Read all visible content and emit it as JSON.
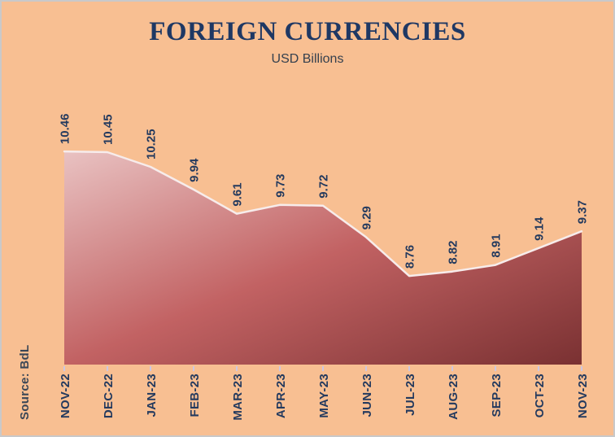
{
  "header": {
    "title": "FOREIGN CURRENCIES",
    "subtitle": "USD Billions"
  },
  "source": {
    "label": "Source: BdL"
  },
  "chart_data": {
    "type": "area",
    "title": "FOREIGN CURRENCIES",
    "subtitle": "USD Billions",
    "source": "Source: BdL",
    "categories": [
      "NOV-22",
      "DEC-22",
      "JAN-23",
      "FEB-23",
      "MAR-23",
      "APR-23",
      "MAY-23",
      "JUN-23",
      "JUL-23",
      "AUG-23",
      "SEP-23",
      "OCT-23",
      "NOV-23"
    ],
    "values": [
      10.46,
      10.45,
      10.25,
      9.94,
      9.61,
      9.73,
      9.72,
      9.29,
      8.76,
      8.82,
      8.91,
      9.14,
      9.37
    ],
    "data_labels": [
      "10.46",
      "10.45",
      "10.25",
      "9.94",
      "9.61",
      "9.73",
      "9.72",
      "9.29",
      "8.76",
      "8.82",
      "8.91",
      "9.14",
      "9.37"
    ],
    "xlabel": "",
    "ylabel": "USD Billions",
    "ylim": [
      7.55,
      10.9
    ],
    "legend": false,
    "gridlines": false,
    "label_rotation_deg": -90,
    "colors": {
      "background": "#F8BF92",
      "title": "#1F3864",
      "label": "#243A5E",
      "area_gradient_start": "#E9C2C2",
      "area_gradient_mid": "#C26263",
      "area_gradient_end": "#7A3132",
      "line": "#F7ECEB",
      "tick": "#CBC7E3",
      "source": "#3A4656"
    }
  }
}
